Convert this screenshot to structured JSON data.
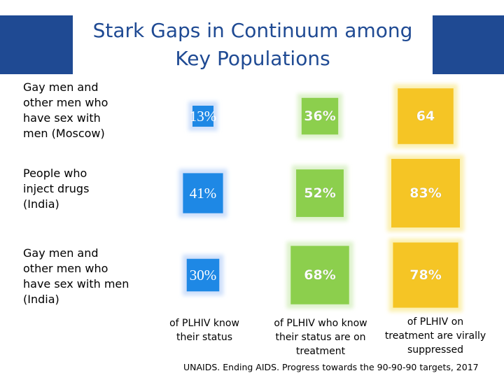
{
  "title": {
    "line1": "Stark Gaps in Continuum among",
    "line2": "Key Populations"
  },
  "source": "UNAIDS. Ending AIDS. Progress  towards the 90-90-90 targets, 2017",
  "colors": {
    "banner": "#1f4a93",
    "know": "#1e88e5",
    "know_halo": "#cfe0fb",
    "treatment": "#8ccf4d",
    "treatment_halo": "#def2cc",
    "suppressed": "#f5c525",
    "suppressed_halo": "#fbf0b2"
  },
  "chart_data": {
    "type": "table",
    "title": "Stark Gaps in Continuum among Key Populations",
    "rows": [
      {
        "label_lines": [
          "Gay men and",
          "other men who",
          "have sex with",
          "men (Moscow)"
        ]
      },
      {
        "label_lines": [
          "People who",
          "inject drugs",
          "(India)"
        ]
      },
      {
        "label_lines": [
          "Gay men and",
          "other men who",
          "have sex with men",
          "(India)"
        ]
      }
    ],
    "columns": [
      {
        "key": "know",
        "label_lines": [
          "of PLHIV know",
          "their status"
        ]
      },
      {
        "key": "treatment",
        "label_lines": [
          "of PLHIV who know",
          "their status are on",
          "treatment"
        ]
      },
      {
        "key": "suppressed",
        "label_lines": [
          "of PLHIV on",
          "treatment are virally",
          "suppressed"
        ]
      }
    ],
    "values": [
      [
        13,
        36,
        64
      ],
      [
        41,
        52,
        83
      ],
      [
        30,
        68,
        78
      ]
    ],
    "value_labels": [
      [
        "13%",
        "36%",
        "64"
      ],
      [
        "41%",
        "52%",
        "83%"
      ],
      [
        "30%",
        "68%",
        "78%"
      ]
    ]
  }
}
